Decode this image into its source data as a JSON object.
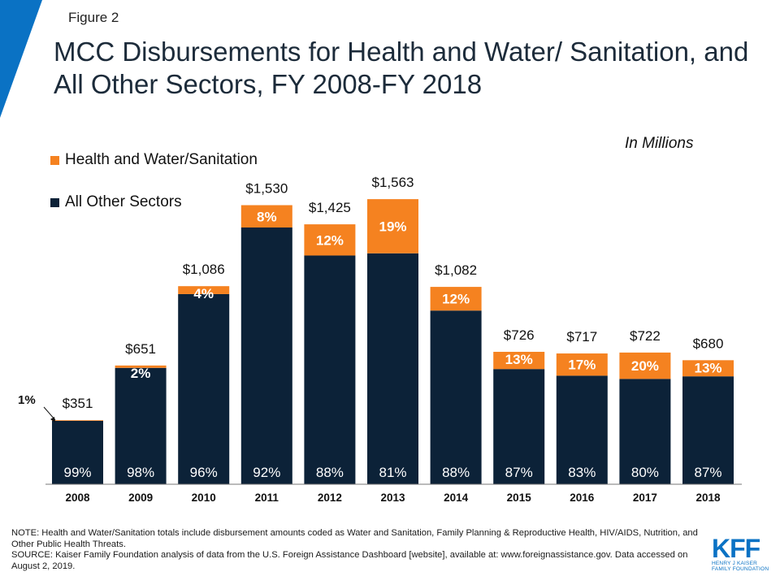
{
  "figure_label": "Figure 2",
  "colors": {
    "accent_triangle": "#0a72c4",
    "health": "#f58220",
    "other": "#0c2238",
    "logo": "#0a72c4"
  },
  "chart_data": {
    "type": "bar",
    "stacked": true,
    "title": "MCC Disbursements for Health and Water/ Sanitation, and All Other Sectors, FY 2008-FY 2018",
    "units_label": "In Millions",
    "legend_placement": "top-left",
    "grid": false,
    "ylim": [
      0,
      1700
    ],
    "categories": [
      "2008",
      "2009",
      "2010",
      "2011",
      "2012",
      "2013",
      "2014",
      "2015",
      "2016",
      "2017",
      "2018"
    ],
    "totals": [
      351,
      651,
      1086,
      1530,
      1425,
      1563,
      1082,
      726,
      717,
      722,
      680
    ],
    "total_labels": [
      "$351",
      "$651",
      "$1,086",
      "$1,530",
      "$1,425",
      "$1,563",
      "$1,082",
      "$726",
      "$717",
      "$722",
      "$680"
    ],
    "series": [
      {
        "name": "Health and Water/Sanitation",
        "color": "#f58220",
        "percents": [
          1,
          2,
          4,
          8,
          12,
          19,
          12,
          13,
          17,
          20,
          13
        ],
        "percent_labels": [
          "1%",
          "2%",
          "4%",
          "8%",
          "12%",
          "19%",
          "12%",
          "13%",
          "17%",
          "20%",
          "13%"
        ]
      },
      {
        "name": "All Other Sectors",
        "color": "#0c2238",
        "percents": [
          99,
          98,
          96,
          92,
          88,
          81,
          88,
          87,
          83,
          80,
          87
        ],
        "percent_labels": [
          "99%",
          "98%",
          "96%",
          "92%",
          "88%",
          "81%",
          "88%",
          "87%",
          "83%",
          "80%",
          "87%"
        ]
      }
    ]
  },
  "note": "NOTE: Health and Water/Sanitation totals include disbursement amounts coded as Water and Sanitation, Family Planning & Reproductive Health, HIV/AIDS, Nutrition, and Other Public Health Threats.",
  "source": "SOURCE: Kaiser Family Foundation analysis of data from the U.S. Foreign Assistance Dashboard [website], available at: www.foreignassistance.gov. Data accessed on August 2, 2019.",
  "logo": {
    "mark": "KFF",
    "line1": "HENRY J KAISER",
    "line2": "FAMILY FOUNDATION"
  }
}
